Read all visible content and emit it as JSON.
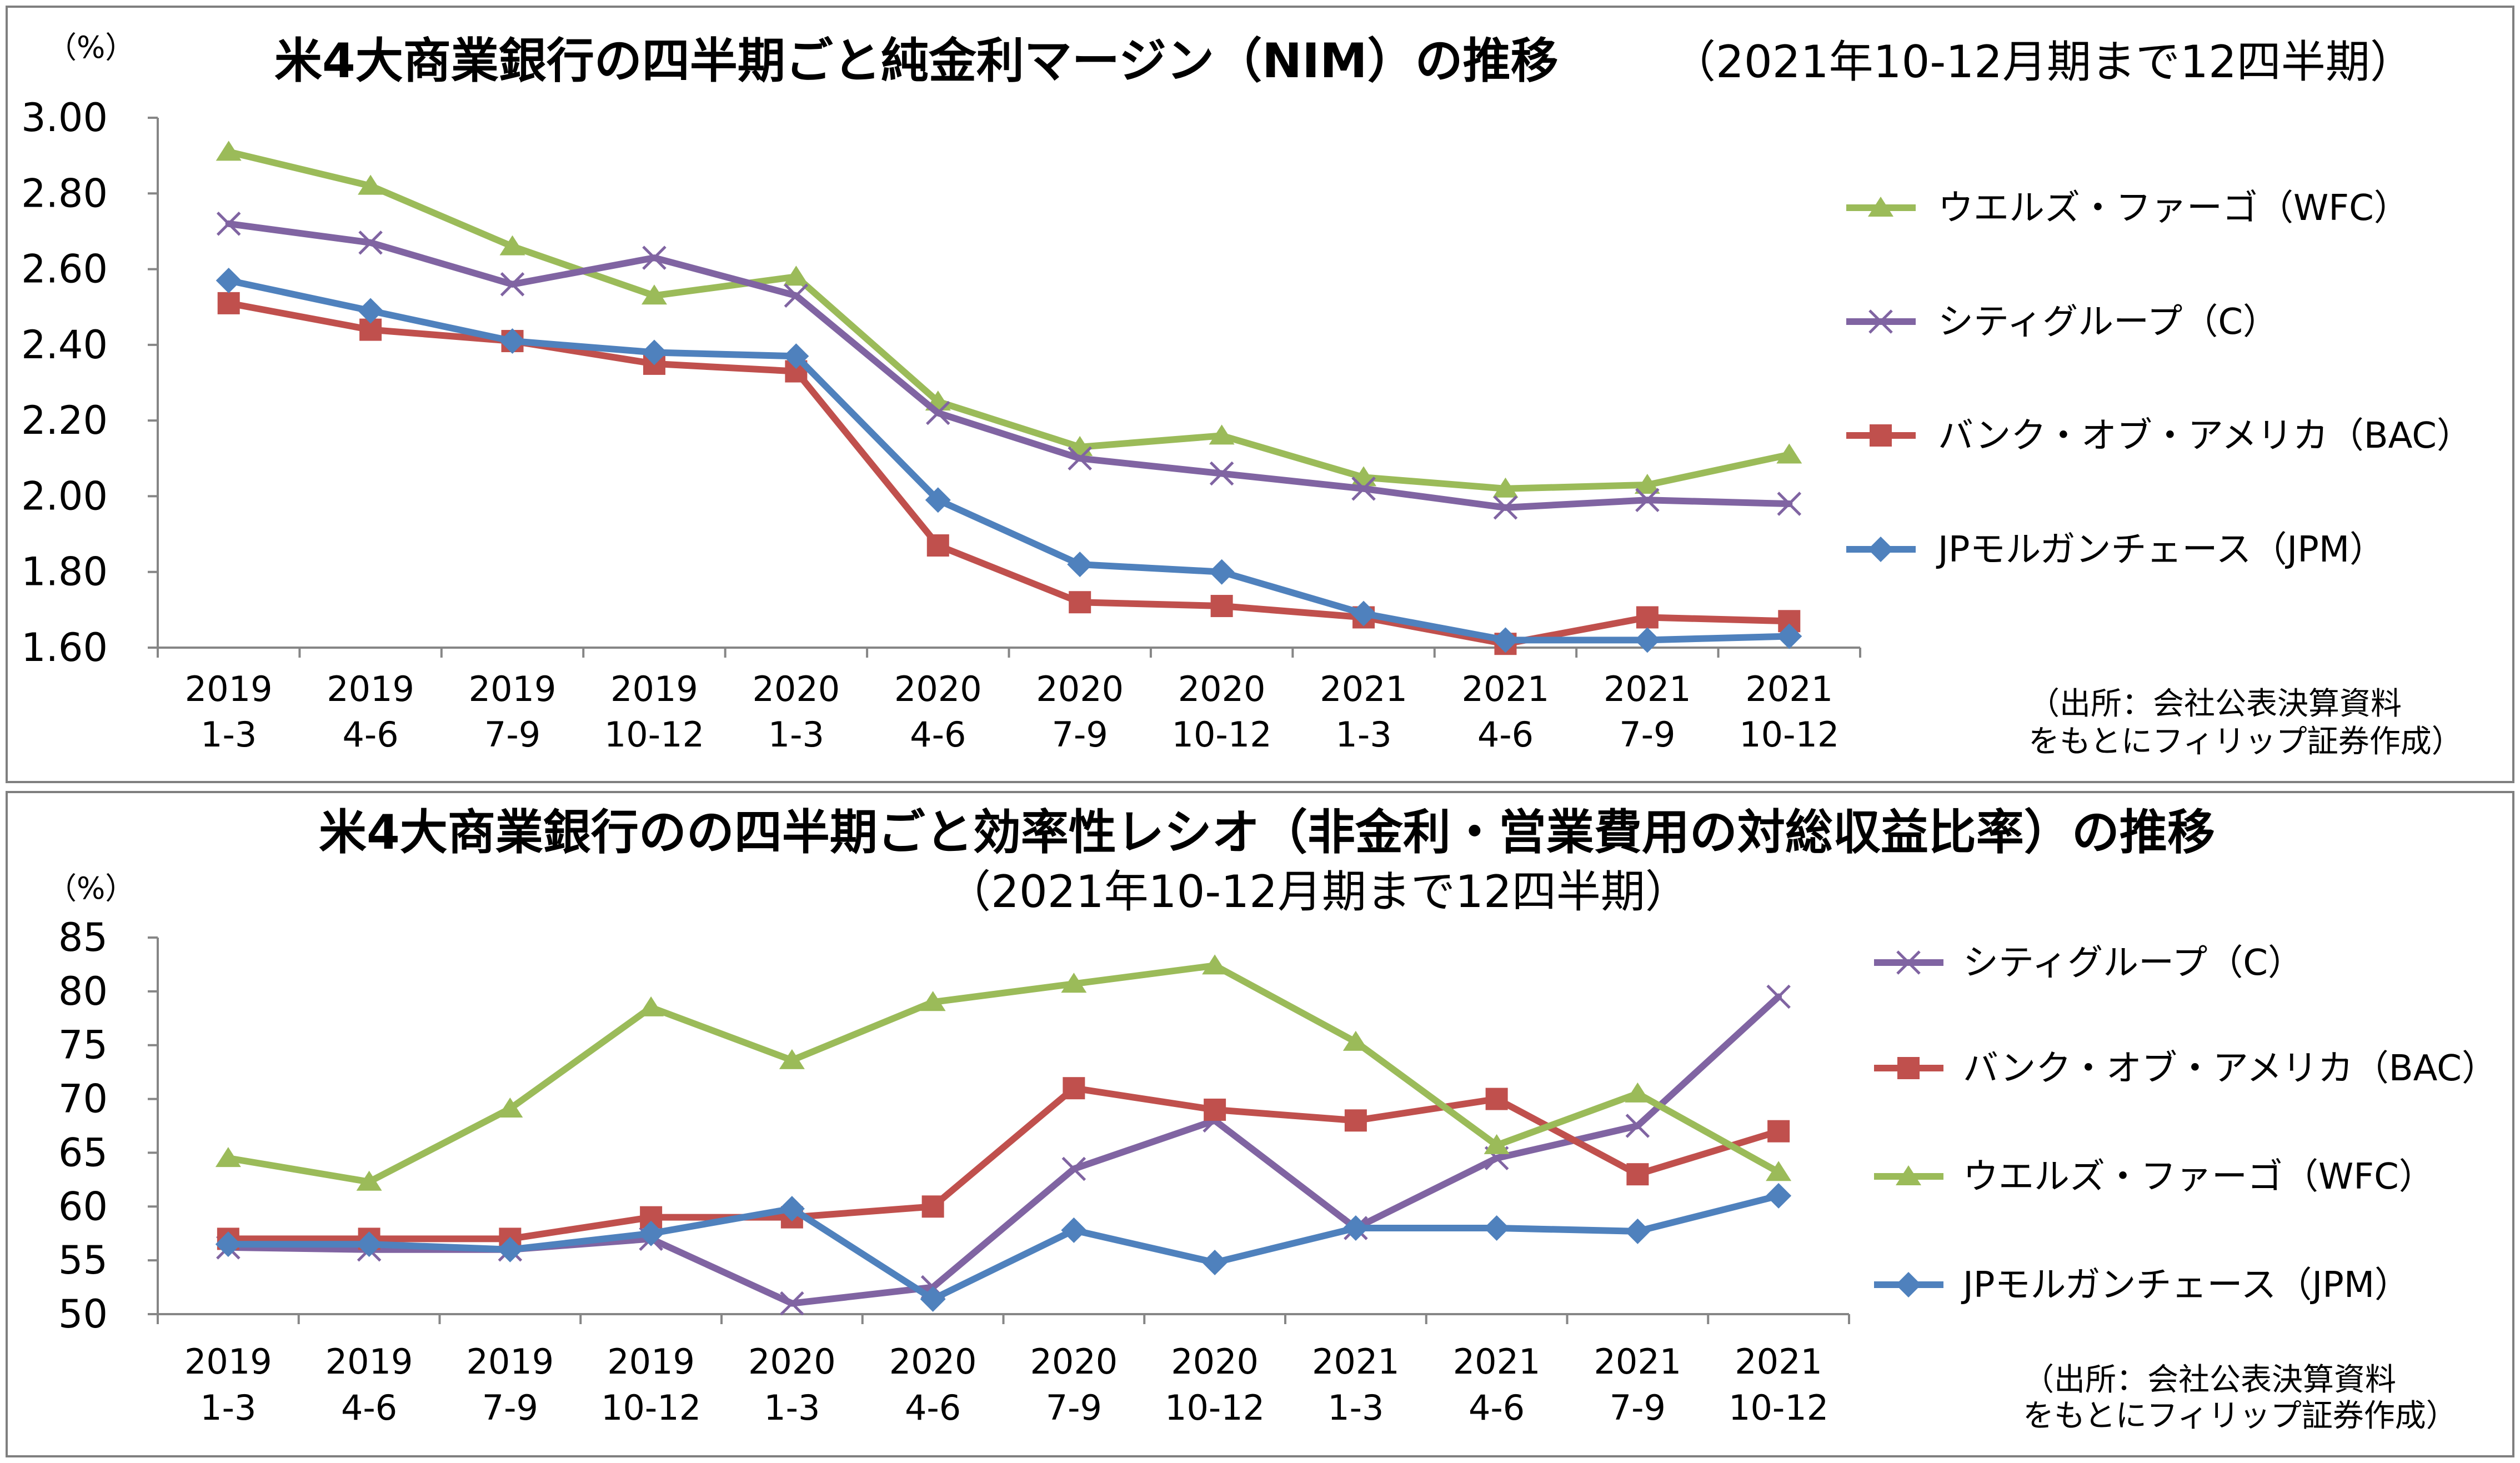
{
  "charts": [
    {
      "title": "米4大商業銀行の四半期ごと純金利マージン（NIM）の推移",
      "subtitle": "（2021年10-12月期まで12四半期）",
      "unit": "（%）",
      "source": [
        "（出所：会社公表決算資料",
        "をもとにフィリップ証券作成）"
      ]
    },
    {
      "title": "米4大商業銀行のの四半期ごと効率性レシオ（非金利・営業費用の対総収益比率）の推移",
      "subtitle": "（2021年10-12月期まで12四半期）",
      "unit": "（%）",
      "source": [
        "（出所：会社公表決算資料",
        "をもとにフィリップ証券作成）"
      ]
    }
  ],
  "chart_data": [
    {
      "type": "line",
      "title": "米4大商業銀行の四半期ごと純金利マージン（NIM）の推移（2021年10-12月期まで12四半期）",
      "ylabel": "（%）",
      "ylim": [
        1.6,
        3.0
      ],
      "yticks": [
        "1.60",
        "1.80",
        "2.00",
        "2.20",
        "2.40",
        "2.60",
        "2.80",
        "3.00"
      ],
      "categories": [
        [
          "2019",
          "1-3"
        ],
        [
          "2019",
          "4-6"
        ],
        [
          "2019",
          "7-9"
        ],
        [
          "2019",
          "10-12"
        ],
        [
          "2020",
          "1-3"
        ],
        [
          "2020",
          "4-6"
        ],
        [
          "2020",
          "7-9"
        ],
        [
          "2020",
          "10-12"
        ],
        [
          "2021",
          "1-3"
        ],
        [
          "2021",
          "4-6"
        ],
        [
          "2021",
          "7-9"
        ],
        [
          "2021",
          "10-12"
        ]
      ],
      "grid": false,
      "legend_position": "right",
      "series": [
        {
          "name": "ウエルズ・ファーゴ（WFC）",
          "marker": "triangle",
          "color": "#9bbb59",
          "values": [
            2.91,
            2.82,
            2.66,
            2.53,
            2.58,
            2.25,
            2.13,
            2.16,
            2.05,
            2.02,
            2.03,
            2.11
          ]
        },
        {
          "name": "シティグループ（C）",
          "marker": "x",
          "color": "#8064a2",
          "values": [
            2.72,
            2.67,
            2.56,
            2.63,
            2.53,
            2.22,
            2.1,
            2.06,
            2.02,
            1.97,
            1.99,
            1.98
          ]
        },
        {
          "name": "バンク・オブ・アメリカ（BAC）",
          "marker": "square",
          "color": "#c0504d",
          "values": [
            2.51,
            2.44,
            2.41,
            2.35,
            2.33,
            1.87,
            1.72,
            1.71,
            1.68,
            1.61,
            1.68,
            1.67
          ]
        },
        {
          "name": "JPモルガンチェース（JPM）",
          "marker": "diamond",
          "color": "#4f81bd",
          "values": [
            2.57,
            2.49,
            2.41,
            2.38,
            2.37,
            1.99,
            1.82,
            1.8,
            1.69,
            1.62,
            1.62,
            1.63
          ]
        }
      ]
    },
    {
      "type": "line",
      "title": "米4大商業銀行のの四半期ごと効率性レシオ（非金利・営業費用の対総収益比率）の推移（2021年10-12月期まで12四半期）",
      "ylabel": "（%）",
      "ylim": [
        50,
        85
      ],
      "yticks": [
        "50",
        "55",
        "60",
        "65",
        "70",
        "75",
        "80",
        "85"
      ],
      "categories": [
        [
          "2019",
          "1-3"
        ],
        [
          "2019",
          "4-6"
        ],
        [
          "2019",
          "7-9"
        ],
        [
          "2019",
          "10-12"
        ],
        [
          "2020",
          "1-3"
        ],
        [
          "2020",
          "4-6"
        ],
        [
          "2020",
          "7-9"
        ],
        [
          "2020",
          "10-12"
        ],
        [
          "2021",
          "1-3"
        ],
        [
          "2021",
          "4-6"
        ],
        [
          "2021",
          "7-9"
        ],
        [
          "2021",
          "10-12"
        ]
      ],
      "grid": false,
      "legend_position": "right",
      "series": [
        {
          "name": "シティグループ（C）",
          "marker": "x",
          "color": "#8064a2",
          "values": [
            56.2,
            56.0,
            56.0,
            57.0,
            51.0,
            52.5,
            63.5,
            68.0,
            58.0,
            64.5,
            67.5,
            79.5
          ]
        },
        {
          "name": "バンク・オブ・アメリカ（BAC）",
          "marker": "square",
          "color": "#c0504d",
          "values": [
            57.0,
            57.0,
            57.0,
            59.0,
            59.0,
            60.0,
            71.0,
            69.0,
            68.0,
            70.0,
            63.0,
            67.0
          ]
        },
        {
          "name": "ウエルズ・ファーゴ（WFC）",
          "marker": "triangle",
          "color": "#9bbb59",
          "values": [
            64.5,
            62.3,
            69.1,
            78.5,
            73.6,
            79.0,
            80.7,
            82.4,
            75.3,
            65.7,
            70.5,
            63.2
          ]
        },
        {
          "name": "JPモルガンチェース（JPM）",
          "marker": "diamond",
          "color": "#4f81bd",
          "values": [
            56.5,
            56.5,
            56.0,
            57.5,
            59.8,
            51.4,
            57.8,
            54.8,
            58.0,
            58.0,
            57.7,
            61.0
          ]
        }
      ]
    }
  ]
}
